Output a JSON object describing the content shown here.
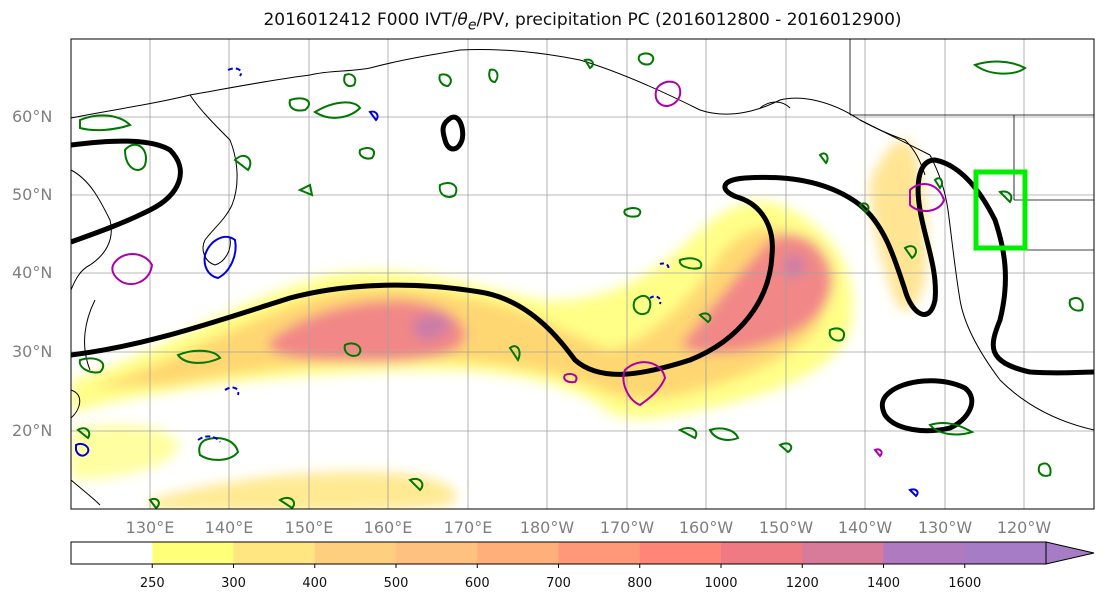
{
  "title": "2016012412 F000 IVT/θe/PV, precipitation PC (2016012800 - 2016012900)",
  "title_parts": {
    "prefix": "2016012412 F000 IVT/",
    "theta": "θ",
    "theta_sub": "e",
    "suffix": "/PV, precipitation PC (2016012800 - 2016012900)"
  },
  "lat_labels": [
    "60°N",
    "50°N",
    "40°N",
    "30°N",
    "20°N"
  ],
  "lon_labels": [
    "130°E",
    "140°E",
    "150°E",
    "160°E",
    "170°E",
    "180°W",
    "170°W",
    "160°W",
    "150°W",
    "140°W",
    "130°W",
    "120°W"
  ],
  "colorbar": {
    "ticks": [
      "250",
      "300",
      "400",
      "500",
      "600",
      "700",
      "800",
      "1000",
      "1200",
      "1400",
      "1600"
    ],
    "colors": [
      "#ffffff",
      "#ffff7a",
      "#ffe680",
      "#ffcf80",
      "#ffc17f",
      "#ffb07a",
      "#ff9878",
      "#ff8578",
      "#f07a84",
      "#d87a9a",
      "#b07ac0",
      "#a57cc5"
    ],
    "extend": "max"
  },
  "contours": {
    "ivt_color": "#000000",
    "theta_color": "#007700",
    "pv_positive_color": "#aa00aa",
    "pv_negative_color": "#0000dd",
    "box_color": "#00ee00"
  }
}
